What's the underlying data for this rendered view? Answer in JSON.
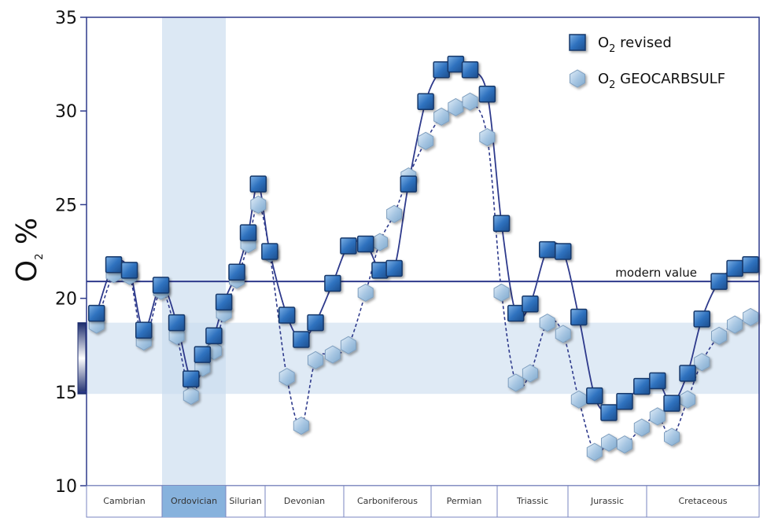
{
  "chart_data": {
    "type": "line",
    "ylabel": "O",
    "ylabel_sub": "2",
    "ylabel_suffix": " %",
    "ylim": [
      10,
      35
    ],
    "yticks": [
      10,
      15,
      20,
      25,
      30,
      35
    ],
    "periods": [
      "Cambrian",
      "Ordovician",
      "Silurian",
      "Devonian",
      "Carboniferous",
      "Permian",
      "Triassic",
      "Jurassic",
      "Cretaceous"
    ],
    "highlighted_period": "Ordovician",
    "band_range": [
      14.9,
      18.7
    ],
    "reference_line": {
      "value": 20.9,
      "label": "modern value"
    },
    "series": [
      {
        "name": "O",
        "name_sub": "2",
        "name_suffix": " revised",
        "marker": "square",
        "line_style": "solid",
        "color": "#2e6fb8",
        "line_color": "#2e3a8c",
        "x": [
          0.7,
          1.9,
          3.0,
          4.0,
          5.2,
          6.3,
          7.3,
          8.1,
          8.9,
          9.6,
          10.5,
          11.3,
          12.0,
          12.8,
          14.0,
          15.0,
          16.0,
          17.2,
          18.3,
          19.5,
          20.5,
          21.5,
          22.5,
          23.7,
          24.8,
          25.8,
          26.8,
          28.0,
          29.0,
          30.0,
          31.0,
          32.2,
          33.3,
          34.4,
          35.5,
          36.5,
          37.6,
          38.8,
          39.9,
          40.9,
          42.0,
          43.0,
          44.2,
          45.3,
          46.4
        ],
        "values": [
          19.2,
          21.8,
          21.5,
          18.3,
          20.7,
          18.7,
          15.7,
          17.0,
          18.0,
          19.8,
          21.4,
          23.5,
          26.1,
          22.5,
          19.1,
          17.8,
          18.7,
          20.8,
          22.8,
          22.9,
          21.5,
          21.6,
          26.1,
          30.5,
          32.2,
          32.5,
          32.2,
          30.9,
          24.0,
          19.2,
          19.7,
          22.6,
          22.5,
          19.0,
          14.8,
          13.9,
          14.5,
          15.3,
          15.6,
          14.4,
          16.0,
          18.9,
          20.9,
          21.6,
          21.8
        ]
      },
      {
        "name": "O",
        "name_sub": "2",
        "name_suffix": " GEOCARBSULF",
        "marker": "hexagon",
        "line_style": "dashed",
        "color": "#9dbfdd",
        "line_color": "#2e3a8c",
        "x": [
          0.7,
          1.9,
          3.0,
          4.0,
          5.2,
          6.3,
          7.3,
          8.1,
          8.9,
          9.6,
          10.5,
          11.3,
          12.0,
          12.8,
          14.0,
          15.0,
          16.0,
          17.2,
          18.3,
          19.5,
          20.5,
          21.5,
          22.5,
          23.7,
          24.8,
          25.8,
          26.8,
          28.0,
          29.0,
          30.0,
          31.0,
          32.2,
          33.3,
          34.4,
          35.5,
          36.5,
          37.6,
          38.8,
          39.9,
          40.9,
          42.0,
          43.0,
          44.2,
          45.3,
          46.4
        ],
        "values": [
          18.6,
          21.3,
          21.2,
          17.7,
          20.4,
          18.0,
          14.8,
          16.3,
          17.2,
          19.2,
          21.0,
          22.9,
          25.0,
          22.4,
          15.8,
          13.2,
          16.7,
          17.0,
          17.5,
          20.3,
          23.0,
          24.5,
          26.5,
          28.4,
          29.7,
          30.2,
          30.5,
          28.6,
          20.3,
          15.5,
          16.0,
          18.7,
          18.1,
          14.6,
          11.8,
          12.3,
          12.2,
          13.1,
          13.7,
          12.6,
          14.6,
          16.6,
          18.0,
          18.6,
          19.0
        ]
      }
    ]
  }
}
